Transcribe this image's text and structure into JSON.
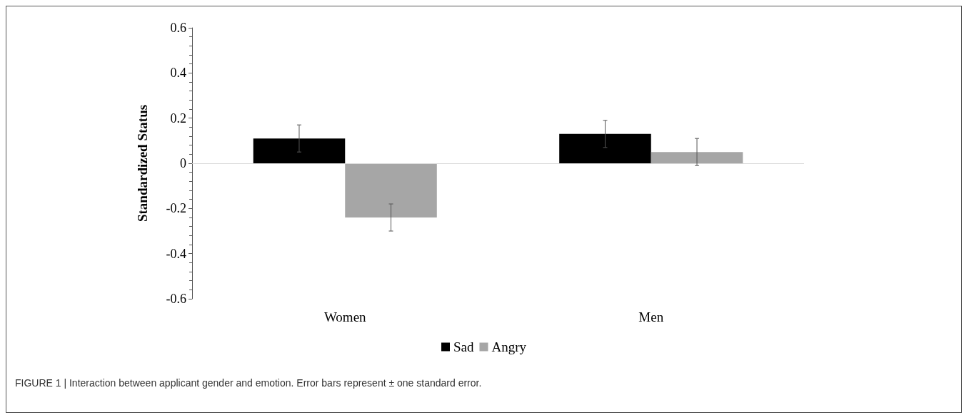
{
  "chart_data": {
    "type": "bar",
    "ylabel": "Standardized Status",
    "categories": [
      "Women",
      "Men"
    ],
    "series": [
      {
        "name": "Sad",
        "color": "#000000",
        "values": [
          0.11,
          0.13
        ],
        "errors": [
          0.06,
          0.06
        ]
      },
      {
        "name": "Angry",
        "color": "#a6a6a6",
        "values": [
          -0.24,
          0.05
        ],
        "errors": [
          0.06,
          0.06
        ]
      }
    ],
    "ylim": [
      -0.6,
      0.6
    ],
    "yticks": [
      -0.6,
      -0.4,
      -0.2,
      0,
      0.2,
      0.4,
      0.6
    ],
    "ref_lines": [
      {
        "axis": "y",
        "value": 0,
        "color": "#d9d9d9"
      }
    ],
    "legend": "bottom",
    "annotations": [
      "FIGURE 1 | Interaction between applicant gender and emotion. Error bars represent ± one standard error."
    ]
  }
}
